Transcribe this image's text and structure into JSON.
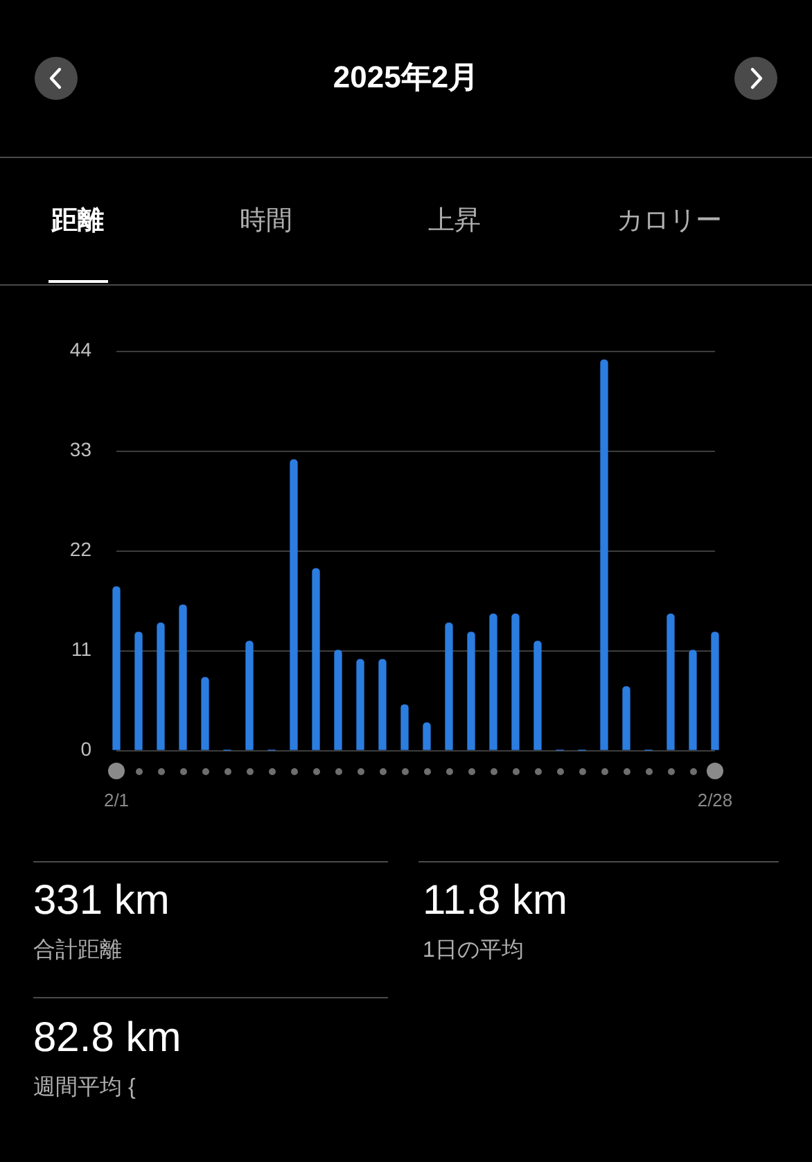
{
  "chart_data": {
    "type": "bar",
    "title": "2025年2月",
    "categories": [
      "2/1",
      null,
      null,
      null,
      null,
      null,
      null,
      null,
      null,
      null,
      null,
      null,
      null,
      null,
      null,
      null,
      null,
      null,
      null,
      null,
      null,
      null,
      null,
      null,
      null,
      null,
      null,
      "2/28"
    ],
    "values": [
      18,
      13,
      14,
      16,
      8,
      0,
      12,
      0,
      32,
      20,
      11,
      10,
      10,
      5,
      3,
      14,
      13,
      15,
      15,
      12,
      0,
      0,
      43,
      7,
      0,
      15,
      11,
      13
    ],
    "color": "#2b7de0",
    "ylim": [
      0,
      44
    ],
    "yticks": [
      0,
      11,
      22,
      33,
      44
    ],
    "grid": "y",
    "annotations": [
      "距離",
      "時間",
      "上昇",
      "カロリー",
      "331 km",
      "合計距離",
      "11.8 km",
      "1日の平均",
      "82.8 km",
      "週間平均 {"
    ]
  }
}
